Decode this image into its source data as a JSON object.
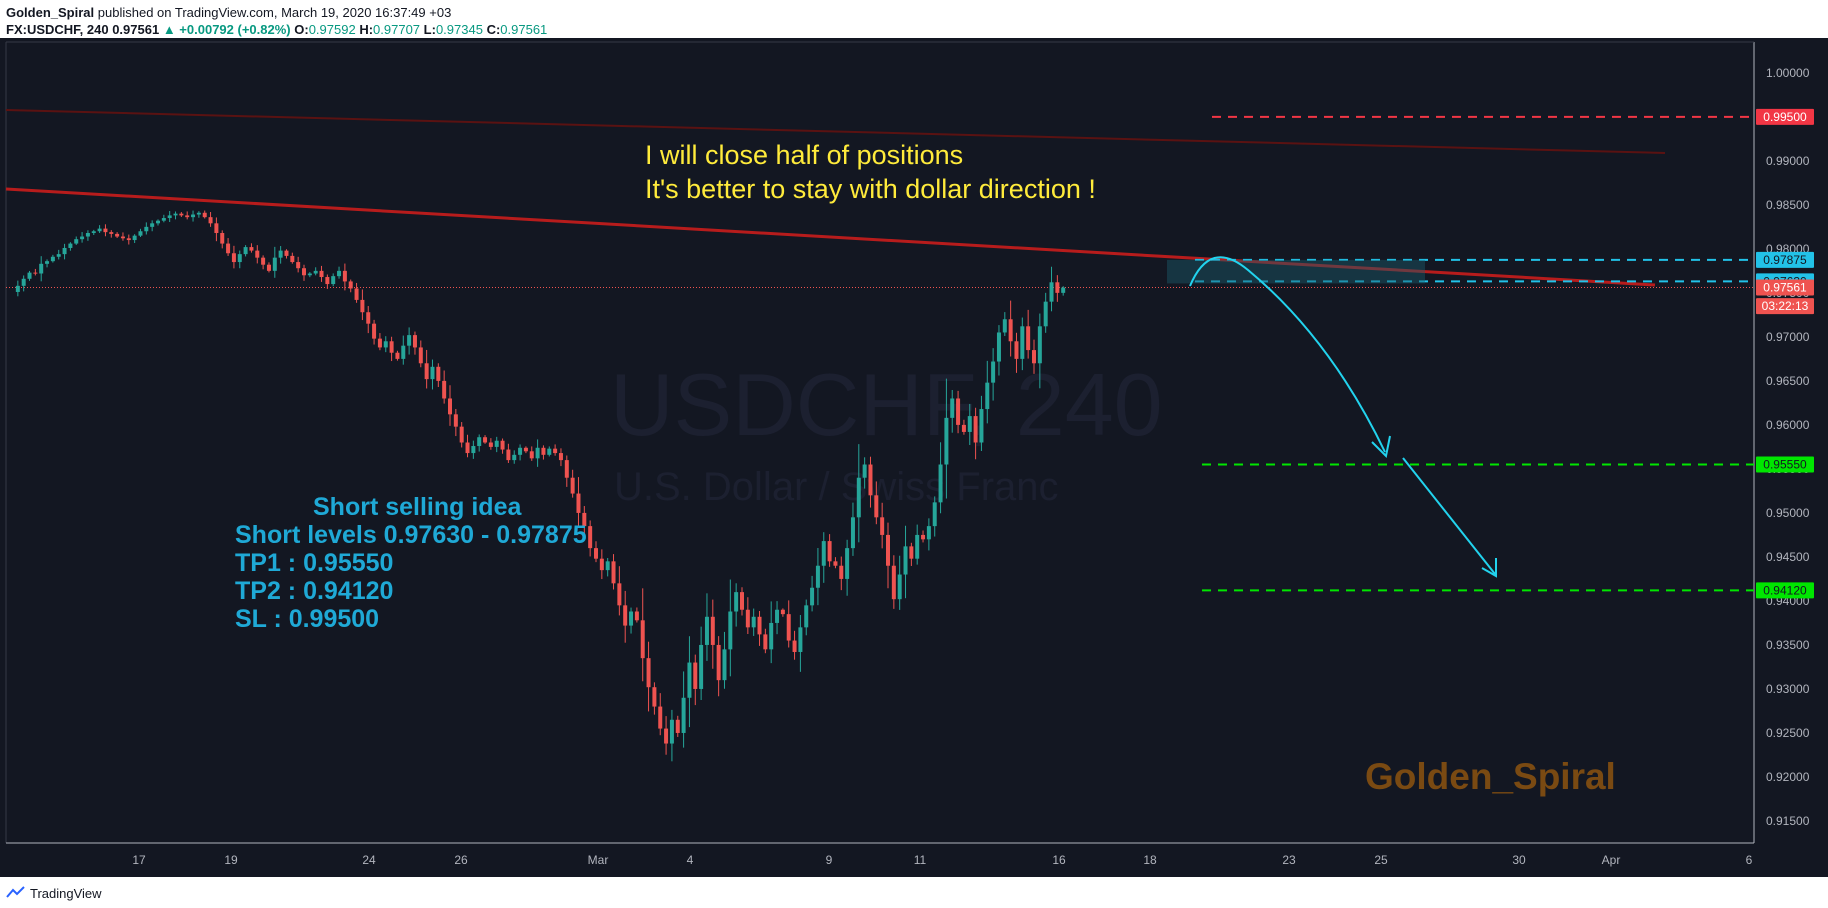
{
  "header": {
    "author": "Golden_Spiral",
    "published": "published on TradingView.com, March 19, 2020 16:37:49 +03",
    "symbol": "FX:USDCHF, 240",
    "last": "0.97561",
    "change": "▲ +0.00792 (+0.82%)",
    "o_label": "O:",
    "o_value": "0.97592",
    "h_label": "H:",
    "h_value": "0.97707",
    "l_label": "L:",
    "l_value": "0.97345",
    "c_label": "C:",
    "c_value": "0.97561"
  },
  "footer": {
    "brand": "TradingView"
  },
  "watermark": {
    "symbol": "USDCHF, 240",
    "name": "U.S. Dollar / Swiss Franc"
  },
  "annotations": {
    "close_line1": "I will close half of positions",
    "close_line2": "It's better to stay with dollar direction  !",
    "idea_title": "Short selling idea",
    "idea_levels": "Short levels 0.97630 - 0.97875",
    "idea_tp1": "TP1   : 0.95550",
    "idea_tp2": "TP2   : 0.94120",
    "idea_sl": "SL     : 0.99500",
    "signature": "Golden_Spiral"
  },
  "colors": {
    "background": "#131722",
    "bull": "#26a69a",
    "bear": "#ef5350",
    "trendline": "#b71c1c",
    "stop_line": "#f23645",
    "target_line": "#00e600",
    "entry_line": "#22c2e8",
    "annotation_yellow": "#ffeb3b",
    "idea_text": "#1fa9d6",
    "signature": "#7a4a12"
  },
  "chart_data": {
    "type": "candlestick",
    "y_axis": {
      "min": 0.9125,
      "max": 1.0035,
      "ticks": [
        "1.00000",
        "0.99500",
        "0.99000",
        "0.98500",
        "0.98000",
        "0.97500",
        "0.97000",
        "0.96500",
        "0.96000",
        "0.95500",
        "0.95000",
        "0.94500",
        "0.94000",
        "0.93500",
        "0.93000",
        "0.92500",
        "0.92000",
        "0.91500"
      ]
    },
    "x_axis": {
      "ticks": [
        "17",
        "19",
        "24",
        "26",
        "Mar",
        "4",
        "9",
        "11",
        "16",
        "18",
        "23",
        "25",
        "30",
        "Apr",
        "6"
      ]
    },
    "price_labels": [
      {
        "label": "0.99500",
        "value": 0.995,
        "color": "#f23645"
      },
      {
        "label": "0.97875",
        "value": 0.97875,
        "color": "#22c2e8"
      },
      {
        "label": "0.97630",
        "value": 0.9763,
        "color": "#22c2e8"
      },
      {
        "label": "0.97561",
        "value": 0.97561,
        "color": "#ef5350"
      },
      {
        "label": "03:22:13",
        "value": 0.9735,
        "color": "#ef5350"
      },
      {
        "label": "0.95550",
        "value": 0.9555,
        "color": "#00e600"
      },
      {
        "label": "0.94120",
        "value": 0.9412,
        "color": "#00e600"
      }
    ],
    "levels": {
      "stop": 0.995,
      "entry_high": 0.97875,
      "entry_low": 0.9763,
      "last": 0.97561,
      "tp1": 0.9555,
      "tp2": 0.9412
    },
    "close_path": [
      0.9751,
      0.9758,
      0.9766,
      0.9773,
      0.9772,
      0.9783,
      0.9786,
      0.9791,
      0.9794,
      0.9801,
      0.9806,
      0.9811,
      0.9814,
      0.9818,
      0.982,
      0.9823,
      0.9819,
      0.9817,
      0.9814,
      0.9812,
      0.981,
      0.9815,
      0.982,
      0.9825,
      0.9829,
      0.9832,
      0.9835,
      0.9838,
      0.984,
      0.9838,
      0.9836,
      0.9839,
      0.9841,
      0.9836,
      0.9829,
      0.9818,
      0.9806,
      0.9795,
      0.9785,
      0.9794,
      0.9802,
      0.9798,
      0.979,
      0.9782,
      0.9775,
      0.979,
      0.9798,
      0.9792,
      0.9785,
      0.9778,
      0.977,
      0.9772,
      0.9775,
      0.9768,
      0.976,
      0.9769,
      0.9775,
      0.9763,
      0.9755,
      0.9742,
      0.9728,
      0.9715,
      0.9698,
      0.9688,
      0.9695,
      0.9682,
      0.9675,
      0.969,
      0.9702,
      0.9688,
      0.967,
      0.9652,
      0.9666,
      0.965,
      0.963,
      0.9612,
      0.9598,
      0.958,
      0.9568,
      0.9576,
      0.9586,
      0.958,
      0.9575,
      0.9582,
      0.9572,
      0.956,
      0.9566,
      0.9574,
      0.957,
      0.9562,
      0.9574,
      0.9566,
      0.9573,
      0.9568,
      0.956,
      0.954,
      0.9522,
      0.95,
      0.9485,
      0.946,
      0.9448,
      0.9435,
      0.9445,
      0.942,
      0.9395,
      0.9372,
      0.9388,
      0.9378,
      0.9335,
      0.9302,
      0.928,
      0.9255,
      0.9238,
      0.9265,
      0.925,
      0.929,
      0.933,
      0.93,
      0.935,
      0.9382,
      0.935,
      0.931,
      0.9345,
      0.9388,
      0.941,
      0.939,
      0.937,
      0.9382,
      0.9362,
      0.9345,
      0.9375,
      0.939,
      0.9385,
      0.9355,
      0.9342,
      0.937,
      0.9395,
      0.9415,
      0.944,
      0.9468,
      0.9445,
      0.944,
      0.9425,
      0.946,
      0.9495,
      0.954,
      0.9555,
      0.952,
      0.9495,
      0.9475,
      0.944,
      0.9402,
      0.943,
      0.9462,
      0.9448,
      0.9475,
      0.947,
      0.9485,
      0.9512,
      0.9555,
      0.9608,
      0.963,
      0.96,
      0.9592,
      0.961,
      0.958,
      0.9618,
      0.9648,
      0.9672,
      0.9705,
      0.972,
      0.9695,
      0.9675,
      0.9712,
      0.9685,
      0.967,
      0.9712,
      0.974,
      0.9762,
      0.975,
      0.9756
    ]
  }
}
